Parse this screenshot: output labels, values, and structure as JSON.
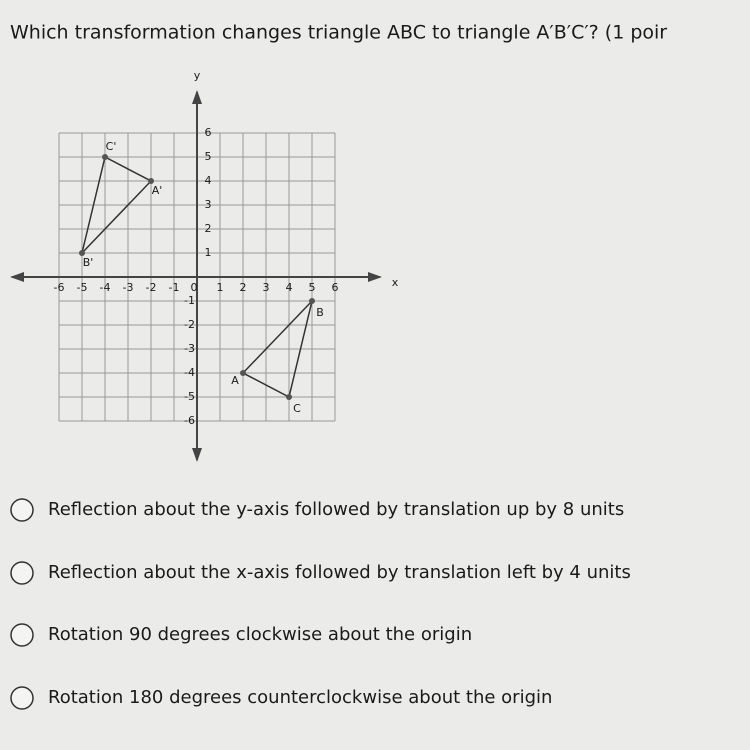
{
  "question": "Which transformation changes triangle ABC to triangle A′B′C′? (1 poir",
  "graph": {
    "x_label": "x",
    "y_label": "y",
    "xticks": [
      -6,
      -5,
      -4,
      -3,
      -2,
      -1,
      0,
      1,
      2,
      3,
      4,
      5,
      6
    ],
    "yticks": [
      6,
      5,
      4,
      3,
      2,
      1,
      -1,
      -2,
      -3,
      -4,
      -5,
      -6
    ],
    "points": [
      {
        "label": "A",
        "x": 2,
        "y": -4
      },
      {
        "label": "B",
        "x": 5,
        "y": -1
      },
      {
        "label": "C",
        "x": 4,
        "y": -5
      },
      {
        "label": "A'",
        "x": -2,
        "y": 4
      },
      {
        "label": "B'",
        "x": -5,
        "y": 1
      },
      {
        "label": "C'",
        "x": -4,
        "y": 5
      }
    ]
  },
  "options": [
    "Reflection about the y-axis followed by translation up by 8 units",
    "Reflection about the x-axis followed by translation left by 4 units",
    "Rotation 90 degrees clockwise about the origin",
    "Rotation 180 degrees counterclockwise about the origin"
  ]
}
